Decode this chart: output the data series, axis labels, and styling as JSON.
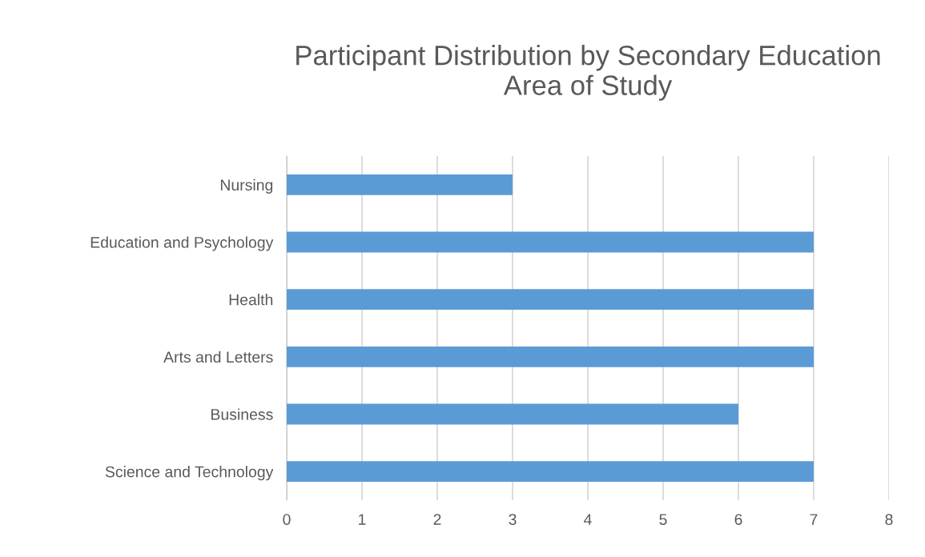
{
  "chart_data": {
    "type": "bar",
    "orientation": "horizontal",
    "title": "Participant Distribution by Secondary Education\nArea of Study",
    "categories": [
      "Nursing",
      "Education and Psychology",
      "Health",
      "Arts and Letters",
      "Business",
      "Science and Technology"
    ],
    "values": [
      3,
      7,
      7,
      7,
      6,
      7
    ],
    "color": "#5b9bd5",
    "xlim": [
      0,
      8
    ],
    "xticks": [
      0,
      1,
      2,
      3,
      4,
      5,
      6,
      7,
      8
    ],
    "grid": "x",
    "legend": false
  }
}
